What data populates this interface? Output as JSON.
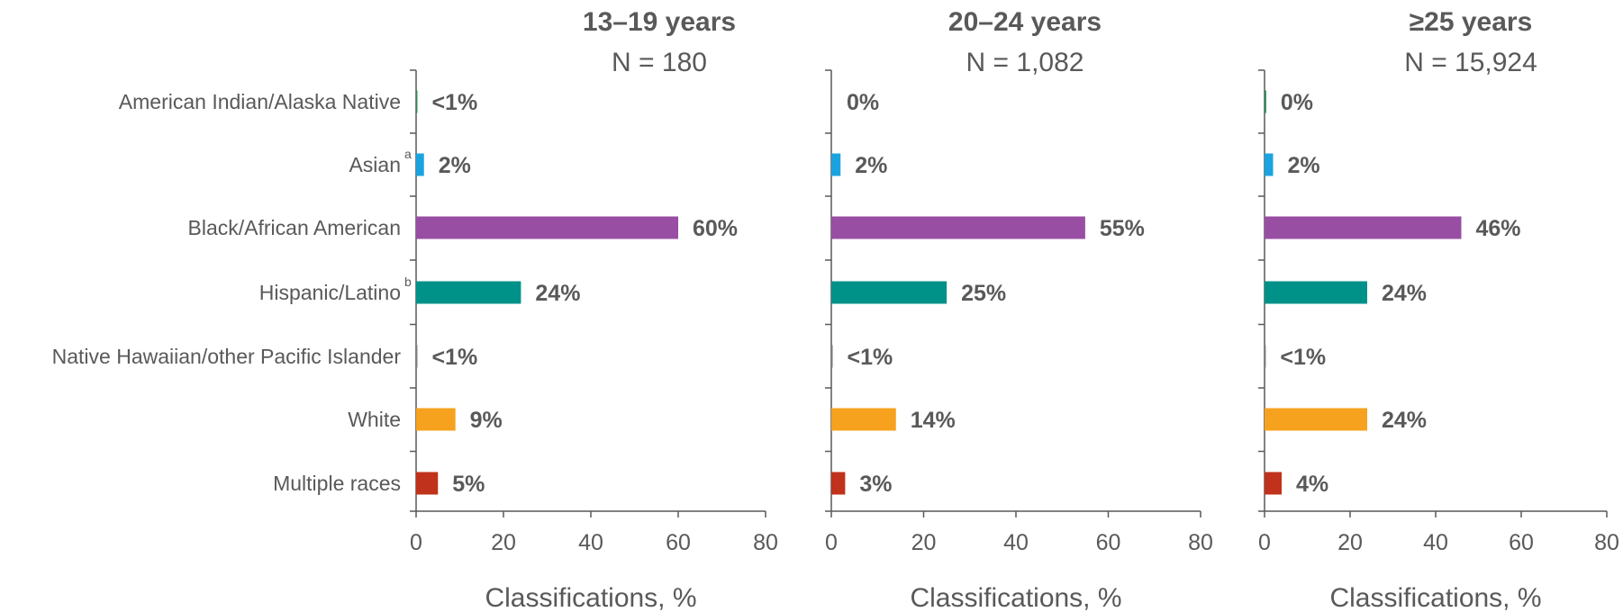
{
  "categories": [
    {
      "label": "American Indian/Alaska Native",
      "sup": ""
    },
    {
      "label": "Asian",
      "sup": "a"
    },
    {
      "label": "Black/African American",
      "sup": ""
    },
    {
      "label": "Hispanic/Latino",
      "sup": "b"
    },
    {
      "label": "Native Hawaiian/other Pacific Islander",
      "sup": ""
    },
    {
      "label": "White",
      "sup": ""
    },
    {
      "label": "Multiple races",
      "sup": ""
    }
  ],
  "colors": [
    "#2E8B57",
    "#1BA3E0",
    "#984EA3",
    "#009189",
    "#7F7F7F",
    "#F6A21E",
    "#C0321B"
  ],
  "chart_data": [
    {
      "type": "bar",
      "orientation": "horizontal",
      "title": "13–19 years",
      "subtitle": "N = 180",
      "xlabel": "Classifications, %",
      "xlim": [
        0,
        80
      ],
      "xticks": [
        "0",
        "20",
        "40",
        "60",
        "80"
      ],
      "values": [
        0.3,
        1.8,
        60,
        24,
        0.3,
        9,
        5
      ],
      "labels": [
        "<1%",
        "2%",
        "60%",
        "24%",
        "<1%",
        "9%",
        "5%"
      ]
    },
    {
      "type": "bar",
      "orientation": "horizontal",
      "title": "20–24 years",
      "subtitle": "N = 1,082",
      "xlabel": "Classifications, %",
      "xlim": [
        0,
        80
      ],
      "xticks": [
        "0",
        "20",
        "40",
        "60",
        "80"
      ],
      "values": [
        0,
        2,
        55,
        25,
        0.3,
        14,
        3
      ],
      "labels": [
        "0%",
        "2%",
        "55%",
        "25%",
        "<1%",
        "14%",
        "3%"
      ]
    },
    {
      "type": "bar",
      "orientation": "horizontal",
      "title": "≥25 years",
      "subtitle": "N = 15,924",
      "xlabel": "Classifications, %",
      "xlim": [
        0,
        80
      ],
      "xticks": [
        "0",
        "20",
        "40",
        "60",
        "80"
      ],
      "values": [
        0.4,
        2,
        46,
        24,
        0.3,
        24,
        4
      ],
      "labels": [
        "0%",
        "2%",
        "46%",
        "24%",
        "<1%",
        "24%",
        "4%"
      ]
    }
  ]
}
